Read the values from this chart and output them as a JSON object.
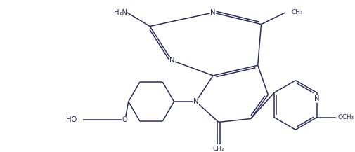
{
  "bg_color": "#ffffff",
  "bond_color": "#2b2b5a",
  "text_color": "#2b2b5a",
  "figsize": [
    5.05,
    2.17
  ],
  "dpi": 100,
  "lw": 1.1,
  "font_size": 7.2,
  "xlim": [
    0,
    10.1
  ],
  "ylim": [
    0,
    4.34
  ]
}
